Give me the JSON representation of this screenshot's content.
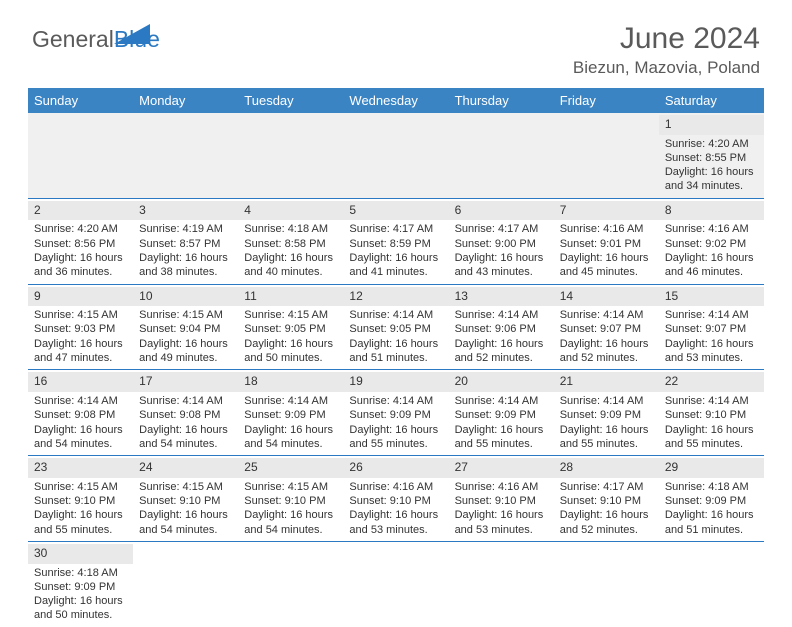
{
  "logo": {
    "general": "General",
    "blue": "Blue"
  },
  "header": {
    "month_year": "June 2024",
    "location": "Biezun, Mazovia, Poland"
  },
  "colors": {
    "header_bg": "#3b84c4",
    "cell_border": "#2b79c2",
    "daynum_bg": "#e9e9e9",
    "text": "#333333"
  },
  "week_headers": [
    "Sunday",
    "Monday",
    "Tuesday",
    "Wednesday",
    "Thursday",
    "Friday",
    "Saturday"
  ],
  "weeks": [
    [
      null,
      null,
      null,
      null,
      null,
      null,
      {
        "d": "1",
        "sr": "4:20 AM",
        "ss": "8:55 PM",
        "dl": "16 hours and 34 minutes."
      }
    ],
    [
      {
        "d": "2",
        "sr": "4:20 AM",
        "ss": "8:56 PM",
        "dl": "16 hours and 36 minutes."
      },
      {
        "d": "3",
        "sr": "4:19 AM",
        "ss": "8:57 PM",
        "dl": "16 hours and 38 minutes."
      },
      {
        "d": "4",
        "sr": "4:18 AM",
        "ss": "8:58 PM",
        "dl": "16 hours and 40 minutes."
      },
      {
        "d": "5",
        "sr": "4:17 AM",
        "ss": "8:59 PM",
        "dl": "16 hours and 41 minutes."
      },
      {
        "d": "6",
        "sr": "4:17 AM",
        "ss": "9:00 PM",
        "dl": "16 hours and 43 minutes."
      },
      {
        "d": "7",
        "sr": "4:16 AM",
        "ss": "9:01 PM",
        "dl": "16 hours and 45 minutes."
      },
      {
        "d": "8",
        "sr": "4:16 AM",
        "ss": "9:02 PM",
        "dl": "16 hours and 46 minutes."
      }
    ],
    [
      {
        "d": "9",
        "sr": "4:15 AM",
        "ss": "9:03 PM",
        "dl": "16 hours and 47 minutes."
      },
      {
        "d": "10",
        "sr": "4:15 AM",
        "ss": "9:04 PM",
        "dl": "16 hours and 49 minutes."
      },
      {
        "d": "11",
        "sr": "4:15 AM",
        "ss": "9:05 PM",
        "dl": "16 hours and 50 minutes."
      },
      {
        "d": "12",
        "sr": "4:14 AM",
        "ss": "9:05 PM",
        "dl": "16 hours and 51 minutes."
      },
      {
        "d": "13",
        "sr": "4:14 AM",
        "ss": "9:06 PM",
        "dl": "16 hours and 52 minutes."
      },
      {
        "d": "14",
        "sr": "4:14 AM",
        "ss": "9:07 PM",
        "dl": "16 hours and 52 minutes."
      },
      {
        "d": "15",
        "sr": "4:14 AM",
        "ss": "9:07 PM",
        "dl": "16 hours and 53 minutes."
      }
    ],
    [
      {
        "d": "16",
        "sr": "4:14 AM",
        "ss": "9:08 PM",
        "dl": "16 hours and 54 minutes."
      },
      {
        "d": "17",
        "sr": "4:14 AM",
        "ss": "9:08 PM",
        "dl": "16 hours and 54 minutes."
      },
      {
        "d": "18",
        "sr": "4:14 AM",
        "ss": "9:09 PM",
        "dl": "16 hours and 54 minutes."
      },
      {
        "d": "19",
        "sr": "4:14 AM",
        "ss": "9:09 PM",
        "dl": "16 hours and 55 minutes."
      },
      {
        "d": "20",
        "sr": "4:14 AM",
        "ss": "9:09 PM",
        "dl": "16 hours and 55 minutes."
      },
      {
        "d": "21",
        "sr": "4:14 AM",
        "ss": "9:09 PM",
        "dl": "16 hours and 55 minutes."
      },
      {
        "d": "22",
        "sr": "4:14 AM",
        "ss": "9:10 PM",
        "dl": "16 hours and 55 minutes."
      }
    ],
    [
      {
        "d": "23",
        "sr": "4:15 AM",
        "ss": "9:10 PM",
        "dl": "16 hours and 55 minutes."
      },
      {
        "d": "24",
        "sr": "4:15 AM",
        "ss": "9:10 PM",
        "dl": "16 hours and 54 minutes."
      },
      {
        "d": "25",
        "sr": "4:15 AM",
        "ss": "9:10 PM",
        "dl": "16 hours and 54 minutes."
      },
      {
        "d": "26",
        "sr": "4:16 AM",
        "ss": "9:10 PM",
        "dl": "16 hours and 53 minutes."
      },
      {
        "d": "27",
        "sr": "4:16 AM",
        "ss": "9:10 PM",
        "dl": "16 hours and 53 minutes."
      },
      {
        "d": "28",
        "sr": "4:17 AM",
        "ss": "9:10 PM",
        "dl": "16 hours and 52 minutes."
      },
      {
        "d": "29",
        "sr": "4:18 AM",
        "ss": "9:09 PM",
        "dl": "16 hours and 51 minutes."
      }
    ],
    [
      {
        "d": "30",
        "sr": "4:18 AM",
        "ss": "9:09 PM",
        "dl": "16 hours and 50 minutes."
      },
      null,
      null,
      null,
      null,
      null,
      null
    ]
  ],
  "labels": {
    "sunrise": "Sunrise:",
    "sunset": "Sunset:",
    "daylight": "Daylight:"
  }
}
